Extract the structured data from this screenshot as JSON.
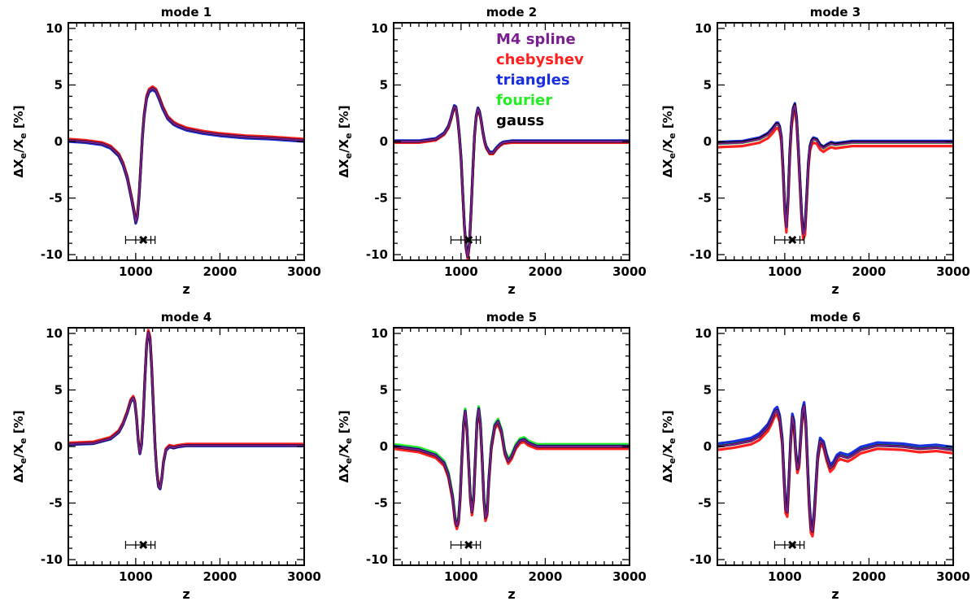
{
  "chart_data": {
    "type": "line",
    "layout": "2x3 grid",
    "xlabel": "z",
    "ylabel_parts": [
      "ΔX",
      "e",
      "/X",
      "e",
      " [%]"
    ],
    "xlim": [
      200,
      3000
    ],
    "ylim": [
      -10.5,
      10.5
    ],
    "xticks": [
      1000,
      2000,
      3000
    ],
    "yticks": [
      -10,
      -5,
      0,
      5,
      10
    ],
    "legend": {
      "panel": 2,
      "placement": "top-right",
      "entries": [
        {
          "name": "M4 spline",
          "color": "#7a1f8f"
        },
        {
          "name": "chebyshev",
          "color": "#ff2020"
        },
        {
          "name": "triangles",
          "color": "#1a2fe0"
        },
        {
          "name": "fourier",
          "color": "#22ee22"
        },
        {
          "name": "gauss",
          "color": "#000000"
        }
      ]
    },
    "marker": {
      "center": 1090,
      "inner": [
        1000,
        1180
      ],
      "outer": [
        880,
        1230
      ],
      "y": -8.7
    },
    "series_note": "all methods overlap; per-panel x/y samples describe the common curve, offsets give per-method deviations",
    "panels": [
      {
        "title": "mode 1",
        "x": [
          200,
          400,
          600,
          700,
          800,
          850,
          900,
          950,
          980,
          1000,
          1020,
          1040,
          1060,
          1080,
          1100,
          1130,
          1160,
          1200,
          1240,
          1280,
          1320,
          1380,
          1450,
          1500,
          1600,
          1800,
          2000,
          2300,
          2600,
          3000
        ],
        "y": [
          0.1,
          0.0,
          -0.2,
          -0.5,
          -1.2,
          -2.0,
          -3.2,
          -5.0,
          -6.2,
          -7.1,
          -6.6,
          -4.8,
          -2.2,
          0.4,
          2.3,
          3.9,
          4.5,
          4.7,
          4.5,
          3.8,
          3.0,
          2.1,
          1.6,
          1.4,
          1.1,
          0.8,
          0.6,
          0.4,
          0.3,
          0.1
        ],
        "offsets": {
          "M4 spline": 0.0,
          "chebyshev": 0.12,
          "triangles": -0.1,
          "fourier": 0.05,
          "gauss": 0.0
        }
      },
      {
        "title": "mode 2",
        "x": [
          200,
          500,
          700,
          800,
          850,
          880,
          900,
          920,
          940,
          960,
          980,
          1000,
          1020,
          1040,
          1060,
          1080,
          1100,
          1120,
          1140,
          1160,
          1180,
          1200,
          1220,
          1240,
          1260,
          1280,
          1300,
          1340,
          1380,
          1420,
          1460,
          1500,
          1600,
          1800,
          2200,
          3000
        ],
        "y": [
          0.0,
          0.0,
          0.2,
          0.7,
          1.3,
          2.0,
          2.6,
          3.1,
          3.0,
          2.0,
          0.5,
          -1.5,
          -4.5,
          -7.5,
          -9.4,
          -10.2,
          -9.0,
          -6.0,
          -2.5,
          0.5,
          2.2,
          2.9,
          2.6,
          1.8,
          0.8,
          0.0,
          -0.5,
          -1.0,
          -1.0,
          -0.6,
          -0.3,
          -0.1,
          0.0,
          0.0,
          0.0,
          0.0
        ],
        "offsets": {
          "M4 spline": 0.0,
          "chebyshev": -0.1,
          "triangles": 0.08,
          "fourier": 0.03,
          "gauss": 0.0
        }
      },
      {
        "title": "mode 3",
        "x": [
          200,
          500,
          700,
          800,
          850,
          880,
          900,
          920,
          940,
          960,
          980,
          1000,
          1020,
          1040,
          1060,
          1080,
          1100,
          1120,
          1140,
          1160,
          1180,
          1200,
          1220,
          1240,
          1260,
          1280,
          1300,
          1320,
          1340,
          1380,
          1420,
          1460,
          1500,
          1550,
          1600,
          1700,
          1800,
          2000,
          2500,
          3000
        ],
        "y": [
          -0.2,
          -0.1,
          0.2,
          0.6,
          1.0,
          1.3,
          1.5,
          1.5,
          1.2,
          0.3,
          -2.5,
          -6.0,
          -7.6,
          -5.0,
          -1.0,
          1.5,
          2.8,
          3.2,
          2.0,
          -0.5,
          -3.5,
          -6.5,
          -8.2,
          -7.8,
          -5.0,
          -2.0,
          -0.5,
          0.0,
          0.2,
          0.1,
          -0.4,
          -0.6,
          -0.4,
          -0.2,
          -0.3,
          -0.2,
          -0.1,
          -0.1,
          -0.1,
          -0.1
        ],
        "offsets": {
          "M4 spline": 0.0,
          "chebyshev": -0.3,
          "triangles": 0.15,
          "fourier": 0.0,
          "gauss": 0.05
        }
      },
      {
        "title": "mode 4",
        "x": [
          200,
          500,
          700,
          800,
          850,
          900,
          940,
          970,
          990,
          1010,
          1030,
          1050,
          1070,
          1090,
          1110,
          1130,
          1150,
          1170,
          1190,
          1210,
          1230,
          1250,
          1270,
          1290,
          1310,
          1330,
          1360,
          1400,
          1450,
          1500,
          1600,
          2000,
          3000
        ],
        "y": [
          0.2,
          0.3,
          0.7,
          1.3,
          2.0,
          3.0,
          4.0,
          4.3,
          3.9,
          2.5,
          0.5,
          -0.6,
          0.2,
          2.8,
          6.2,
          9.0,
          10.1,
          9.5,
          7.0,
          3.5,
          0.0,
          -2.2,
          -3.5,
          -3.7,
          -2.8,
          -1.4,
          -0.3,
          0.0,
          -0.1,
          0.0,
          0.1,
          0.1,
          0.1
        ],
        "offsets": {
          "M4 spline": 0.0,
          "chebyshev": 0.12,
          "triangles": -0.05,
          "fourier": 0.0,
          "gauss": 0.0
        }
      },
      {
        "title": "mode 5",
        "x": [
          200,
          500,
          700,
          800,
          850,
          900,
          930,
          950,
          970,
          990,
          1010,
          1030,
          1050,
          1070,
          1090,
          1110,
          1130,
          1150,
          1170,
          1190,
          1210,
          1230,
          1250,
          1270,
          1290,
          1310,
          1330,
          1360,
          1400,
          1440,
          1480,
          1520,
          1560,
          1600,
          1650,
          1700,
          1750,
          1800,
          1900,
          2200,
          3000
        ],
        "y": [
          0.0,
          -0.3,
          -0.8,
          -1.5,
          -2.5,
          -4.5,
          -6.5,
          -7.0,
          -6.5,
          -4.5,
          -1.0,
          2.0,
          3.1,
          1.5,
          -1.5,
          -4.5,
          -5.8,
          -4.5,
          -1.0,
          2.2,
          3.3,
          2.0,
          -1.0,
          -4.5,
          -6.3,
          -5.8,
          -3.0,
          0.0,
          1.8,
          2.2,
          1.3,
          -0.5,
          -1.3,
          -0.9,
          0.0,
          0.5,
          0.6,
          0.3,
          0.0,
          0.0,
          0.0
        ],
        "offsets": {
          "M4 spline": 0.0,
          "chebyshev": -0.2,
          "triangles": 0.05,
          "fourier": 0.2,
          "gauss": 0.0
        }
      },
      {
        "title": "mode 6",
        "x": [
          200,
          400,
          600,
          700,
          800,
          840,
          880,
          910,
          940,
          970,
          990,
          1010,
          1030,
          1050,
          1070,
          1090,
          1110,
          1130,
          1150,
          1170,
          1190,
          1210,
          1230,
          1250,
          1270,
          1290,
          1310,
          1330,
          1350,
          1370,
          1390,
          1420,
          1460,
          1500,
          1540,
          1580,
          1620,
          1660,
          1700,
          1750,
          1800,
          1900,
          2100,
          2400,
          2600,
          2800,
          3000
        ],
        "y": [
          0.0,
          0.2,
          0.5,
          0.9,
          1.7,
          2.3,
          3.0,
          3.2,
          2.5,
          0.5,
          -2.5,
          -5.5,
          -5.8,
          -3.0,
          0.5,
          2.6,
          2.0,
          -0.5,
          -2.0,
          -1.5,
          0.8,
          3.0,
          3.6,
          2.0,
          -1.5,
          -5.0,
          -7.2,
          -7.5,
          -6.0,
          -3.5,
          -1.0,
          0.5,
          0.2,
          -1.0,
          -1.9,
          -1.6,
          -1.0,
          -0.8,
          -0.9,
          -1.0,
          -0.8,
          -0.3,
          0.1,
          0.0,
          -0.2,
          -0.1,
          -0.3
        ],
        "offsets": {
          "M4 spline": 0.0,
          "chebyshev": -0.3,
          "triangles": 0.25,
          "fourier": 0.1,
          "gauss": 0.0
        }
      }
    ]
  }
}
